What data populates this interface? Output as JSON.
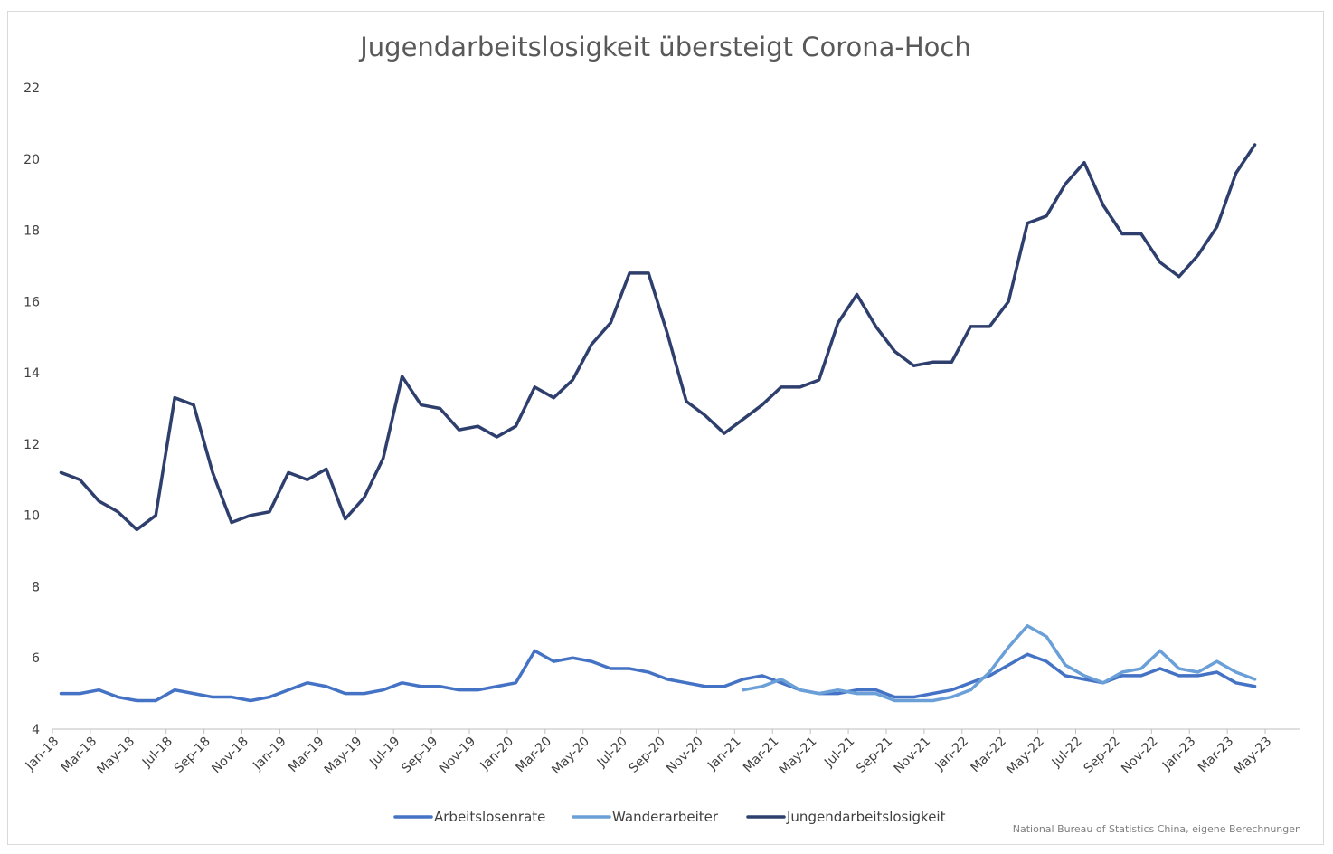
{
  "chart_data": {
    "type": "line",
    "title": "Jugendarbeitslosigkeit übersteigt Corona-Hoch",
    "xlabel": "",
    "ylabel": "",
    "ylim": [
      4,
      22
    ],
    "yticks": [
      4,
      6,
      8,
      10,
      12,
      14,
      16,
      18,
      20,
      22
    ],
    "grid": false,
    "legend_position": "bottom",
    "source": "National Bureau of Statistics China, eigene Berechnungen",
    "x": [
      "Jan-18",
      "Feb-18",
      "Mar-18",
      "Apr-18",
      "May-18",
      "Jun-18",
      "Jul-18",
      "Aug-18",
      "Sep-18",
      "Oct-18",
      "Nov-18",
      "Dec-18",
      "Jan-19",
      "Feb-19",
      "Mar-19",
      "Apr-19",
      "May-19",
      "Jun-19",
      "Jul-19",
      "Aug-19",
      "Sep-19",
      "Oct-19",
      "Nov-19",
      "Dec-19",
      "Jan-20",
      "Feb-20",
      "Mar-20",
      "Apr-20",
      "May-20",
      "Jun-20",
      "Jul-20",
      "Aug-20",
      "Sep-20",
      "Oct-20",
      "Nov-20",
      "Dec-20",
      "Jan-21",
      "Feb-21",
      "Mar-21",
      "Apr-21",
      "May-21",
      "Jun-21",
      "Jul-21",
      "Aug-21",
      "Sep-21",
      "Oct-21",
      "Nov-21",
      "Dec-21",
      "Jan-22",
      "Feb-22",
      "Mar-22",
      "Apr-22",
      "May-22",
      "Jun-22",
      "Jul-22",
      "Aug-22",
      "Sep-22",
      "Oct-22",
      "Nov-22",
      "Dec-22",
      "Jan-23",
      "Feb-23",
      "Mar-23",
      "Apr-23",
      "May-23"
    ],
    "xtick_labels": [
      "Jan-18",
      "Mar-18",
      "May-18",
      "Jul-18",
      "Sep-18",
      "Nov-18",
      "Jan-19",
      "Mar-19",
      "May-19",
      "Jul-19",
      "Sep-19",
      "Nov-19",
      "Jan-20",
      "Mar-20",
      "May-20",
      "Jul-20",
      "Sep-20",
      "Nov-20",
      "Jan-21",
      "Mar-21",
      "May-21",
      "Jul-21",
      "Sep-21",
      "Nov-21",
      "Jan-22",
      "Mar-22",
      "May-22",
      "Jul-22",
      "Sep-22",
      "Nov-22",
      "Jan-23",
      "Mar-23",
      "May-23"
    ],
    "series": [
      {
        "name": "Arbeitslosenrate",
        "color": "#4472c4",
        "values": [
          5.0,
          5.0,
          5.1,
          4.9,
          4.8,
          4.8,
          5.1,
          5.0,
          4.9,
          4.9,
          4.8,
          4.9,
          5.1,
          5.3,
          5.2,
          5.0,
          5.0,
          5.1,
          5.3,
          5.2,
          5.2,
          5.1,
          5.1,
          5.2,
          5.3,
          6.2,
          5.9,
          6.0,
          5.9,
          5.7,
          5.7,
          5.6,
          5.4,
          5.3,
          5.2,
          5.2,
          5.4,
          5.5,
          5.3,
          5.1,
          5.0,
          5.0,
          5.1,
          5.1,
          4.9,
          4.9,
          5.0,
          5.1,
          5.3,
          5.5,
          5.8,
          6.1,
          5.9,
          5.5,
          5.4,
          5.3,
          5.5,
          5.5,
          5.7,
          5.5,
          5.5,
          5.6,
          5.3,
          5.2,
          null
        ]
      },
      {
        "name": "Wanderarbeiter",
        "color": "#6a9fd8",
        "values": [
          null,
          null,
          null,
          null,
          null,
          null,
          null,
          null,
          null,
          null,
          null,
          null,
          null,
          null,
          null,
          null,
          null,
          null,
          null,
          null,
          null,
          null,
          null,
          null,
          null,
          null,
          null,
          null,
          null,
          null,
          null,
          null,
          null,
          null,
          null,
          null,
          5.1,
          5.2,
          5.4,
          5.1,
          5.0,
          5.1,
          5.0,
          5.0,
          4.8,
          4.8,
          4.8,
          4.9,
          5.1,
          5.6,
          6.3,
          6.9,
          6.6,
          5.8,
          5.5,
          5.3,
          5.6,
          5.7,
          6.2,
          5.7,
          5.6,
          5.9,
          5.6,
          5.4,
          null
        ]
      },
      {
        "name": "Jungendarbeitslosigkeit",
        "color": "#2e3f6e",
        "values": [
          11.2,
          11.0,
          10.4,
          10.1,
          9.6,
          10.0,
          13.3,
          13.1,
          11.2,
          9.8,
          10.0,
          10.1,
          11.2,
          11.0,
          11.3,
          9.9,
          10.5,
          11.6,
          13.9,
          13.1,
          13.0,
          12.4,
          12.5,
          12.2,
          12.5,
          13.6,
          13.3,
          13.8,
          14.8,
          15.4,
          16.8,
          16.8,
          15.1,
          13.2,
          12.8,
          12.3,
          12.7,
          13.1,
          13.6,
          13.6,
          13.8,
          15.4,
          16.2,
          15.3,
          14.6,
          14.2,
          14.3,
          14.3,
          15.3,
          15.3,
          16.0,
          18.2,
          18.4,
          19.3,
          19.9,
          18.7,
          17.9,
          17.9,
          17.1,
          16.7,
          17.3,
          18.1,
          19.6,
          20.4,
          null
        ]
      }
    ]
  }
}
